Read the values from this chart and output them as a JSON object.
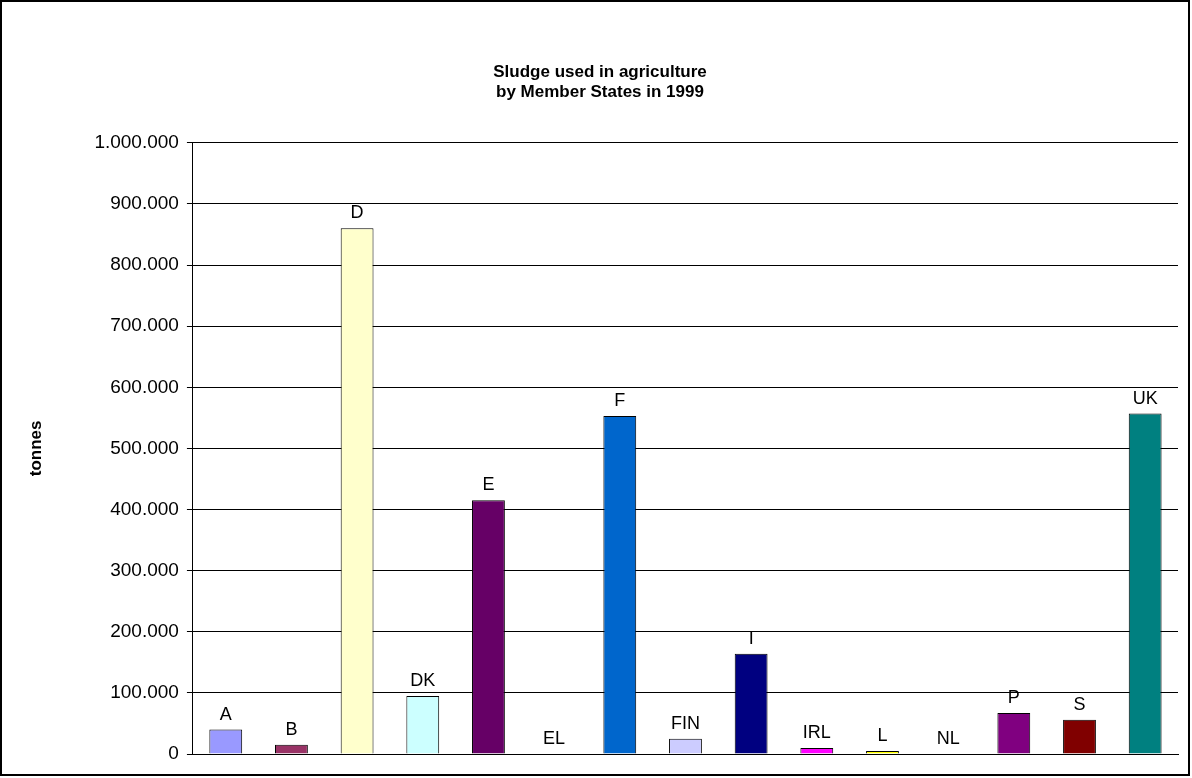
{
  "chart_data": {
    "type": "bar",
    "title": [
      "Sludge used in agriculture",
      "by Member States in 1999"
    ],
    "ylabel": "tonnes",
    "categories": [
      "A",
      "B",
      "D",
      "DK",
      "E",
      "EL",
      "F",
      "FIN",
      "I",
      "IRL",
      "L",
      "NL",
      "P",
      "S",
      "UK"
    ],
    "values": [
      40000,
      15000,
      860000,
      95000,
      415000,
      0,
      553000,
      25000,
      164000,
      10000,
      5000,
      0,
      67000,
      56000,
      557000
    ],
    "colors": [
      "#9999ff",
      "#993366",
      "#ffffcc",
      "#ccffff",
      "#660066",
      "#ff8080",
      "#0066cc",
      "#ccccff",
      "#000080",
      "#ff00ff",
      "#ffff00",
      "#00ffff",
      "#800080",
      "#800000",
      "#008080"
    ],
    "ylim": [
      0,
      1000000
    ],
    "yticks": [
      {
        "value": 0,
        "label": "0"
      },
      {
        "value": 100000,
        "label": "100.000"
      },
      {
        "value": 200000,
        "label": "200.000"
      },
      {
        "value": 300000,
        "label": "300.000"
      },
      {
        "value": 400000,
        "label": "400.000"
      },
      {
        "value": 500000,
        "label": "500.000"
      },
      {
        "value": 600000,
        "label": "600.000"
      },
      {
        "value": 700000,
        "label": "700.000"
      },
      {
        "value": 800000,
        "label": "800.000"
      },
      {
        "value": 900000,
        "label": "900.000"
      },
      {
        "value": 1000000,
        "label": "1.000.000"
      }
    ],
    "grid": "y",
    "tick_labels": "y",
    "legend": false
  }
}
